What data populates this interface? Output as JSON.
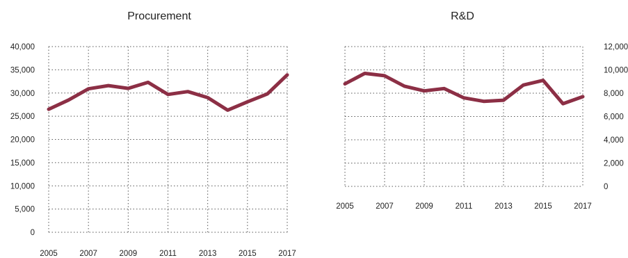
{
  "chart_data": [
    {
      "type": "line",
      "title": "Procurement",
      "xlabel": "",
      "ylabel": "",
      "x": [
        2005,
        2006,
        2007,
        2008,
        2009,
        2010,
        2011,
        2012,
        2013,
        2014,
        2015,
        2016,
        2017
      ],
      "x_tick_labels": [
        "2005",
        "2007",
        "2009",
        "2011",
        "2013",
        "2015",
        "2017"
      ],
      "y_tick_labels": [
        "0",
        "5,000",
        "10,000",
        "15,000",
        "20,000",
        "25,000",
        "30,000",
        "35,000",
        "40,000"
      ],
      "ylim": [
        0,
        40000
      ],
      "y_axis_side": "left",
      "grid": true,
      "series": [
        {
          "values": [
            26500,
            28500,
            30900,
            31600,
            31000,
            32300,
            29700,
            30300,
            29000,
            26300,
            28100,
            29800,
            33900
          ]
        }
      ]
    },
    {
      "type": "line",
      "title": "R&D",
      "xlabel": "",
      "ylabel": "",
      "x": [
        2005,
        2006,
        2007,
        2008,
        2009,
        2010,
        2011,
        2012,
        2013,
        2014,
        2015,
        2016,
        2017
      ],
      "x_tick_labels": [
        "2005",
        "2007",
        "2009",
        "2011",
        "2013",
        "2015",
        "2017"
      ],
      "y_tick_labels": [
        "0",
        "2,000",
        "4,000",
        "6,000",
        "8,000",
        "10,000",
        "12,000"
      ],
      "ylim": [
        0,
        12000
      ],
      "y_axis_side": "right",
      "grid": true,
      "series": [
        {
          "values": [
            8800,
            9700,
            9500,
            8600,
            8200,
            8400,
            7600,
            7300,
            7400,
            8700,
            9100,
            7100,
            7700
          ]
        }
      ]
    }
  ],
  "colors": {
    "series": "#8c2f45"
  }
}
